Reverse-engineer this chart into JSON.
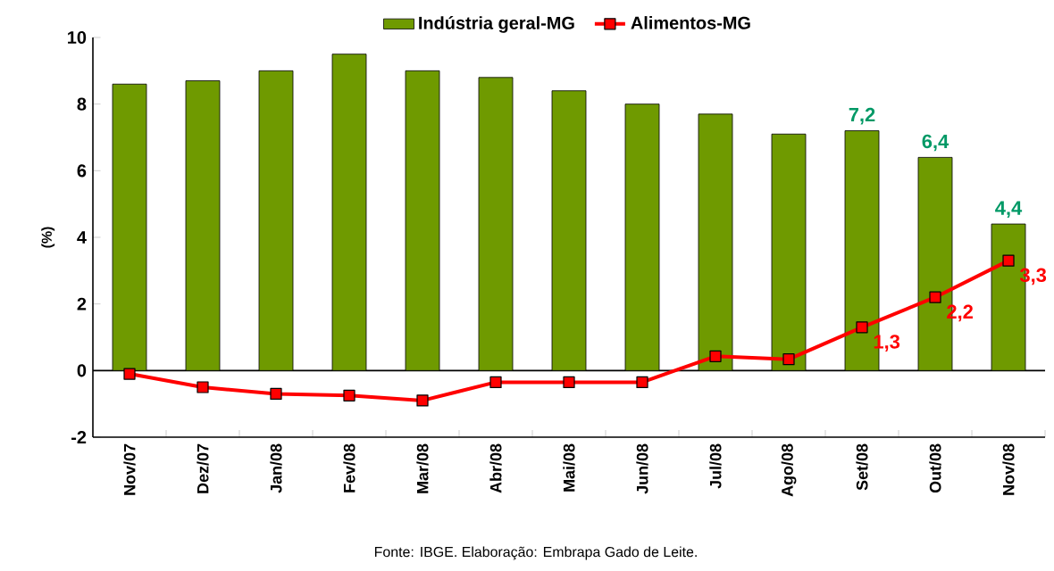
{
  "chart_data": {
    "type": "bar",
    "ylabel": "(%)",
    "categories": [
      "Nov/07",
      "Dez/07",
      "Jan/08",
      "Fev/08",
      "Mar/08",
      "Abr/08",
      "Mai/08",
      "Jun/08",
      "Jul/08",
      "Ago/08",
      "Set/08",
      "Out/08",
      "Nov/08"
    ],
    "series": [
      {
        "name": "Indústria geral-MG",
        "color": "#6f9a00",
        "values": [
          8.6,
          8.7,
          9.0,
          9.5,
          9.0,
          8.8,
          8.4,
          8.0,
          7.7,
          7.1,
          7.2,
          6.4,
          4.4
        ],
        "value_labels": [
          null,
          null,
          null,
          null,
          null,
          null,
          null,
          null,
          null,
          null,
          "7,2",
          "6,4",
          "4,4"
        ]
      },
      {
        "name": "Alimentos-MG",
        "type": "line",
        "color": "#ff0000",
        "marker": "square",
        "line_style": "solid",
        "values": [
          -0.1,
          -0.5,
          -0.7,
          -0.75,
          -0.9,
          -0.35,
          -0.35,
          -0.35,
          0.43,
          0.34,
          1.3,
          2.2,
          3.3
        ],
        "value_labels": [
          null,
          null,
          null,
          null,
          null,
          null,
          null,
          null,
          null,
          null,
          "1,3",
          "2,2",
          "3,3"
        ]
      }
    ],
    "ylim": [
      -2,
      10
    ],
    "yticks": [
      -2,
      0,
      2,
      4,
      6,
      8,
      10
    ],
    "legend": "top",
    "annotations": [
      "Fonte: IBGE. Elaboração: Embrapa Gado de Leite."
    ]
  }
}
